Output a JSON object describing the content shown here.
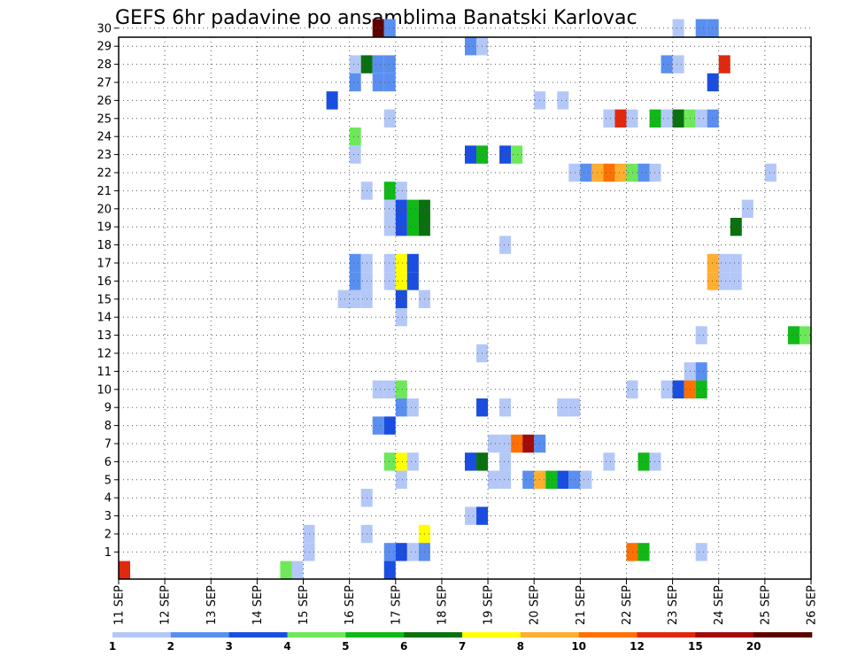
{
  "chart_data": {
    "type": "heatmap",
    "title": "GEFS 6hr padavine po ansamblima Banatski Karlovac",
    "x_tick_labels": [
      "11 SEP",
      "12 SEP",
      "13 SEP",
      "14 SEP",
      "15 SEP",
      "16 SEP",
      "17 SEP",
      "18 SEP",
      "19 SEP",
      "20 SEP",
      "21 SEP",
      "22 SEP",
      "23 SEP",
      "24 SEP",
      "25 SEP",
      "26 SEP"
    ],
    "y_tick_labels": [
      "1",
      "2",
      "3",
      "4",
      "5",
      "6",
      "7",
      "8",
      "9",
      "10",
      "11",
      "12",
      "13",
      "14",
      "15",
      "16",
      "17",
      "18",
      "19",
      "20",
      "21",
      "22",
      "23",
      "24",
      "25",
      "26",
      "27",
      "28",
      "29",
      "30"
    ],
    "time_step_hours": 6,
    "colorbar": {
      "labels": [
        "1",
        "2",
        "3",
        "4",
        "5",
        "6",
        "7",
        "8",
        "10",
        "12",
        "15",
        "20"
      ],
      "colors": [
        "#b4c8f8",
        "#5a8ff0",
        "#1a4ee0",
        "#6ee85a",
        "#10b818",
        "#0a7010",
        "#ffff00",
        "#ffae30",
        "#ff7000",
        "#e02810",
        "#a40a0a",
        "#5e0000"
      ]
    },
    "grid": true,
    "cells": [
      {
        "member": 30,
        "time": "16 SEP 12",
        "level": 12
      },
      {
        "member": 30,
        "time": "16 SEP 18",
        "level": 2
      },
      {
        "member": 30,
        "time": "23 SEP 00",
        "level": 1
      },
      {
        "member": 30,
        "time": "23 SEP 12",
        "level": 2
      },
      {
        "member": 30,
        "time": "23 SEP 18",
        "level": 2
      },
      {
        "member": 29,
        "time": "18 SEP 12",
        "level": 2
      },
      {
        "member": 29,
        "time": "18 SEP 18",
        "level": 1
      },
      {
        "member": 28,
        "time": "16 SEP 00",
        "level": 1
      },
      {
        "member": 28,
        "time": "16 SEP 06",
        "level": 6
      },
      {
        "member": 28,
        "time": "16 SEP 12",
        "level": 2
      },
      {
        "member": 28,
        "time": "16 SEP 18",
        "level": 2
      },
      {
        "member": 28,
        "time": "22 SEP 18",
        "level": 2
      },
      {
        "member": 28,
        "time": "23 SEP 00",
        "level": 1
      },
      {
        "member": 28,
        "time": "24 SEP 00",
        "level": 10
      },
      {
        "member": 27,
        "time": "16 SEP 00",
        "level": 2
      },
      {
        "member": 27,
        "time": "16 SEP 12",
        "level": 2
      },
      {
        "member": 27,
        "time": "16 SEP 18",
        "level": 2
      },
      {
        "member": 27,
        "time": "23 SEP 18",
        "level": 3
      },
      {
        "member": 26,
        "time": "15 SEP 12",
        "level": 3
      },
      {
        "member": 26,
        "time": "20 SEP 00",
        "level": 1
      },
      {
        "member": 26,
        "time": "20 SEP 12",
        "level": 1
      },
      {
        "member": 25,
        "time": "16 SEP 18",
        "level": 1
      },
      {
        "member": 25,
        "time": "21 SEP 12",
        "level": 1
      },
      {
        "member": 25,
        "time": "21 SEP 18",
        "level": 10
      },
      {
        "member": 25,
        "time": "22 SEP 00",
        "level": 1
      },
      {
        "member": 25,
        "time": "22 SEP 12",
        "level": 5
      },
      {
        "member": 25,
        "time": "22 SEP 18",
        "level": 1
      },
      {
        "member": 25,
        "time": "23 SEP 00",
        "level": 6
      },
      {
        "member": 25,
        "time": "23 SEP 06",
        "level": 4
      },
      {
        "member": 25,
        "time": "23 SEP 12",
        "level": 1
      },
      {
        "member": 25,
        "time": "23 SEP 18",
        "level": 2
      },
      {
        "member": 24,
        "time": "16 SEP 00",
        "level": 4
      },
      {
        "member": 23,
        "time": "16 SEP 00",
        "level": 1
      },
      {
        "member": 23,
        "time": "18 SEP 12",
        "level": 3
      },
      {
        "member": 23,
        "time": "18 SEP 18",
        "level": 5
      },
      {
        "member": 23,
        "time": "19 SEP 06",
        "level": 3
      },
      {
        "member": 23,
        "time": "19 SEP 12",
        "level": 4
      },
      {
        "member": 22,
        "time": "20 SEP 18",
        "level": 1
      },
      {
        "member": 22,
        "time": "21 SEP 00",
        "level": 2
      },
      {
        "member": 22,
        "time": "21 SEP 06",
        "level": 8
      },
      {
        "member": 22,
        "time": "21 SEP 12",
        "level": 9
      },
      {
        "member": 22,
        "time": "21 SEP 18",
        "level": 8
      },
      {
        "member": 22,
        "time": "22 SEP 00",
        "level": 4
      },
      {
        "member": 22,
        "time": "22 SEP 06",
        "level": 2
      },
      {
        "member": 22,
        "time": "22 SEP 12",
        "level": 1
      },
      {
        "member": 22,
        "time": "25 SEP 00",
        "level": 1
      },
      {
        "member": 21,
        "time": "16 SEP 06",
        "level": 1
      },
      {
        "member": 21,
        "time": "16 SEP 18",
        "level": 5
      },
      {
        "member": 21,
        "time": "17 SEP 00",
        "level": 1
      },
      {
        "member": 20,
        "time": "16 SEP 18",
        "level": 1
      },
      {
        "member": 20,
        "time": "17 SEP 00",
        "level": 3
      },
      {
        "member": 20,
        "time": "17 SEP 06",
        "level": 5
      },
      {
        "member": 20,
        "time": "17 SEP 12",
        "level": 6
      },
      {
        "member": 20,
        "time": "24 SEP 12",
        "level": 1
      },
      {
        "member": 19,
        "time": "16 SEP 18",
        "level": 1
      },
      {
        "member": 19,
        "time": "17 SEP 00",
        "level": 3
      },
      {
        "member": 19,
        "time": "17 SEP 06",
        "level": 5
      },
      {
        "member": 19,
        "time": "17 SEP 12",
        "level": 6
      },
      {
        "member": 19,
        "time": "24 SEP 06",
        "level": 6
      },
      {
        "member": 18,
        "time": "19 SEP 06",
        "level": 1
      },
      {
        "member": 17,
        "time": "16 SEP 00",
        "level": 2
      },
      {
        "member": 17,
        "time": "16 SEP 06",
        "level": 1
      },
      {
        "member": 17,
        "time": "16 SEP 18",
        "level": 1
      },
      {
        "member": 17,
        "time": "17 SEP 00",
        "level": 7
      },
      {
        "member": 17,
        "time": "17 SEP 06",
        "level": 3
      },
      {
        "member": 17,
        "time": "23 SEP 18",
        "level": 8
      },
      {
        "member": 17,
        "time": "24 SEP 00",
        "level": 1
      },
      {
        "member": 17,
        "time": "24 SEP 06",
        "level": 1
      },
      {
        "member": 16,
        "time": "16 SEP 00",
        "level": 2
      },
      {
        "member": 16,
        "time": "16 SEP 06",
        "level": 1
      },
      {
        "member": 16,
        "time": "16 SEP 18",
        "level": 1
      },
      {
        "member": 16,
        "time": "17 SEP 00",
        "level": 7
      },
      {
        "member": 16,
        "time": "17 SEP 06",
        "level": 3
      },
      {
        "member": 16,
        "time": "23 SEP 18",
        "level": 8
      },
      {
        "member": 16,
        "time": "24 SEP 00",
        "level": 1
      },
      {
        "member": 16,
        "time": "24 SEP 06",
        "level": 1
      },
      {
        "member": 15,
        "time": "15 SEP 18",
        "level": 1
      },
      {
        "member": 15,
        "time": "16 SEP 00",
        "level": 1
      },
      {
        "member": 15,
        "time": "16 SEP 06",
        "level": 1
      },
      {
        "member": 15,
        "time": "17 SEP 00",
        "level": 3
      },
      {
        "member": 15,
        "time": "17 SEP 12",
        "level": 1
      },
      {
        "member": 14,
        "time": "17 SEP 00",
        "level": 1
      },
      {
        "member": 13,
        "time": "23 SEP 12",
        "level": 1
      },
      {
        "member": 13,
        "time": "25 SEP 12",
        "level": 5
      },
      {
        "member": 13,
        "time": "25 SEP 18",
        "level": 4
      },
      {
        "member": 12,
        "time": "18 SEP 18",
        "level": 1
      },
      {
        "member": 11,
        "time": "23 SEP 06",
        "level": 1
      },
      {
        "member": 11,
        "time": "23 SEP 12",
        "level": 2
      },
      {
        "member": 10,
        "time": "16 SEP 12",
        "level": 1
      },
      {
        "member": 10,
        "time": "16 SEP 18",
        "level": 1
      },
      {
        "member": 10,
        "time": "17 SEP 00",
        "level": 4
      },
      {
        "member": 10,
        "time": "22 SEP 00",
        "level": 1
      },
      {
        "member": 10,
        "time": "22 SEP 18",
        "level": 1
      },
      {
        "member": 10,
        "time": "23 SEP 00",
        "level": 3
      },
      {
        "member": 10,
        "time": "23 SEP 06",
        "level": 9
      },
      {
        "member": 10,
        "time": "23 SEP 12",
        "level": 5
      },
      {
        "member": 9,
        "time": "17 SEP 00",
        "level": 2
      },
      {
        "member": 9,
        "time": "17 SEP 06",
        "level": 1
      },
      {
        "member": 9,
        "time": "18 SEP 18",
        "level": 3
      },
      {
        "member": 9,
        "time": "19 SEP 06",
        "level": 1
      },
      {
        "member": 9,
        "time": "20 SEP 12",
        "level": 1
      },
      {
        "member": 9,
        "time": "20 SEP 18",
        "level": 1
      },
      {
        "member": 8,
        "time": "16 SEP 12",
        "level": 2
      },
      {
        "member": 8,
        "time": "16 SEP 18",
        "level": 3
      },
      {
        "member": 7,
        "time": "19 SEP 00",
        "level": 1
      },
      {
        "member": 7,
        "time": "19 SEP 06",
        "level": 1
      },
      {
        "member": 7,
        "time": "19 SEP 12",
        "level": 9
      },
      {
        "member": 7,
        "time": "19 SEP 18",
        "level": 11
      },
      {
        "member": 7,
        "time": "20 SEP 00",
        "level": 2
      },
      {
        "member": 6,
        "time": "16 SEP 18",
        "level": 4
      },
      {
        "member": 6,
        "time": "17 SEP 00",
        "level": 7
      },
      {
        "member": 6,
        "time": "17 SEP 06",
        "level": 1
      },
      {
        "member": 6,
        "time": "18 SEP 12",
        "level": 3
      },
      {
        "member": 6,
        "time": "18 SEP 18",
        "level": 6
      },
      {
        "member": 6,
        "time": "19 SEP 06",
        "level": 1
      },
      {
        "member": 6,
        "time": "21 SEP 12",
        "level": 1
      },
      {
        "member": 6,
        "time": "22 SEP 06",
        "level": 5
      },
      {
        "member": 6,
        "time": "22 SEP 12",
        "level": 1
      },
      {
        "member": 5,
        "time": "17 SEP 00",
        "level": 1
      },
      {
        "member": 5,
        "time": "19 SEP 00",
        "level": 1
      },
      {
        "member": 5,
        "time": "19 SEP 06",
        "level": 1
      },
      {
        "member": 5,
        "time": "19 SEP 18",
        "level": 2
      },
      {
        "member": 5,
        "time": "20 SEP 00",
        "level": 8
      },
      {
        "member": 5,
        "time": "20 SEP 06",
        "level": 5
      },
      {
        "member": 5,
        "time": "20 SEP 12",
        "level": 3
      },
      {
        "member": 5,
        "time": "20 SEP 18",
        "level": 2
      },
      {
        "member": 5,
        "time": "21 SEP 00",
        "level": 1
      },
      {
        "member": 4,
        "time": "16 SEP 06",
        "level": 1
      },
      {
        "member": 3,
        "time": "18 SEP 12",
        "level": 1
      },
      {
        "member": 3,
        "time": "18 SEP 18",
        "level": 3
      },
      {
        "member": 2,
        "time": "15 SEP 00",
        "level": 1
      },
      {
        "member": 2,
        "time": "16 SEP 06",
        "level": 1
      },
      {
        "member": 2,
        "time": "17 SEP 12",
        "level": 7
      },
      {
        "member": 1,
        "time": "15 SEP 00",
        "level": 1
      },
      {
        "member": 1,
        "time": "16 SEP 18",
        "level": 2
      },
      {
        "member": 1,
        "time": "17 SEP 00",
        "level": 3
      },
      {
        "member": 1,
        "time": "17 SEP 06",
        "level": 1
      },
      {
        "member": 1,
        "time": "17 SEP 12",
        "level": 2
      },
      {
        "member": 1,
        "time": "22 SEP 00",
        "level": 9
      },
      {
        "member": 1,
        "time": "22 SEP 06",
        "level": 5
      },
      {
        "member": 1,
        "time": "23 SEP 12",
        "level": 1
      },
      {
        "member": 0,
        "time": "14 SEP 12",
        "level": 4
      },
      {
        "member": 0,
        "time": "14 SEP 18",
        "level": 1
      },
      {
        "member": 0,
        "time": "16 SEP 18",
        "level": 3
      },
      {
        "member": 0,
        "time": "11 SEP 00",
        "level": 10
      }
    ]
  }
}
